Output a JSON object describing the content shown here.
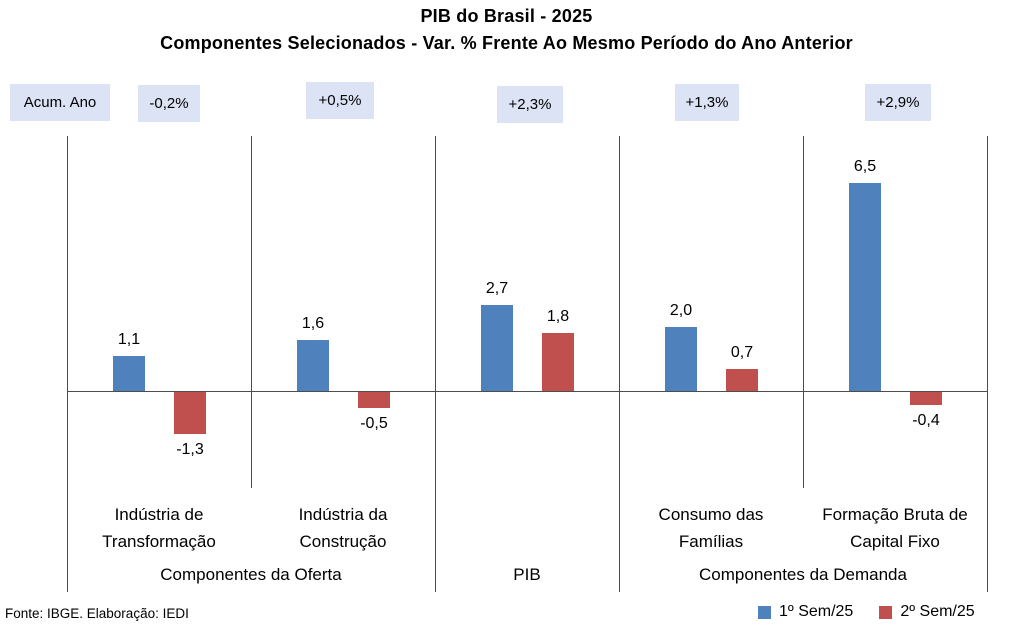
{
  "source_note": "Fonte: IBGE. Elaboração: IEDI",
  "colors": {
    "sem1": "#4F81BD",
    "sem2": "#C0504D",
    "badge_bg": "#dce3f4",
    "axis": "#4d4d4d",
    "text": "#000000"
  },
  "chart_data": {
    "type": "bar",
    "title": "PIB do Brasil - 2025",
    "subtitle": "Componentes Selecionados - Var. % Frente Ao Mesmo Período do Ano Anterior",
    "categories": [
      "Indústria de Transformação",
      "Indústria da Construção",
      "PIB",
      "Consumo das Famílias",
      "Formação Bruta de Capital Fixo"
    ],
    "category_lines": [
      [
        "Indústria de",
        "Transformação"
      ],
      [
        "Indústria da",
        "Construção"
      ],
      [],
      [
        "Consumo das",
        "Famílias"
      ],
      [
        "Formação Bruta de",
        "Capital Fixo"
      ]
    ],
    "groups": [
      {
        "label": "Componentes da Oferta",
        "span": [
          0,
          1
        ]
      },
      {
        "label": "PIB",
        "span": [
          2,
          2
        ]
      },
      {
        "label": "Componentes da Demanda",
        "span": [
          3,
          4
        ]
      }
    ],
    "series": [
      {
        "name": "1º Sem/25",
        "color": "#4F81BD",
        "values": [
          1.1,
          1.6,
          2.7,
          2.0,
          6.5
        ],
        "labels": [
          "1,1",
          "1,6",
          "2,7",
          "2,0",
          "6,5"
        ]
      },
      {
        "name": "2º Sem/25",
        "color": "#C0504D",
        "values": [
          -1.3,
          -0.5,
          1.8,
          0.7,
          -0.4
        ],
        "labels": [
          "-1,3",
          "-0,5",
          "1,8",
          "0,7",
          "-0,4"
        ]
      }
    ],
    "acum_ano": {
      "label": "Acum. Ano",
      "values": [
        "-0,2%",
        "+0,5%",
        "+2,3%",
        "+1,3%",
        "+2,9%"
      ]
    },
    "ylim": [
      -3,
      8
    ],
    "grid": false,
    "legend_position": "bottom-right"
  }
}
